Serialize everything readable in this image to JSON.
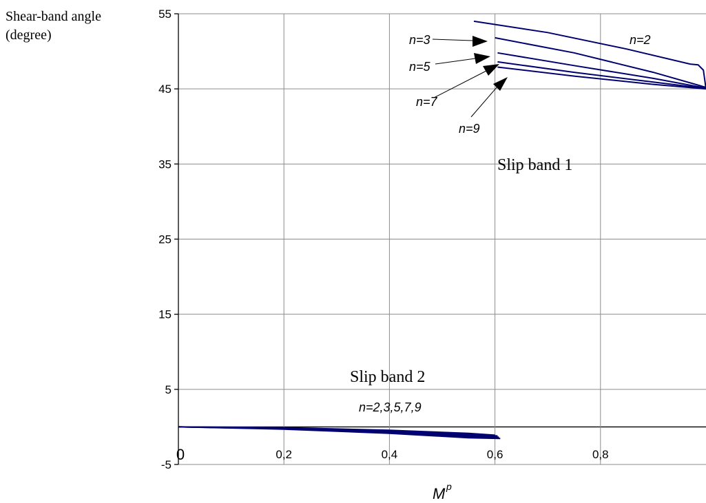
{
  "chart_data": {
    "type": "line",
    "ylabel_lines": [
      "Shear-band angle",
      "(degree)"
    ],
    "xlabel": "M",
    "xlabel_sup": "p",
    "xlim": [
      0,
      1
    ],
    "ylim": [
      -5,
      55
    ],
    "grid": true,
    "x_ticks": [
      {
        "value": 0,
        "label": "0"
      },
      {
        "value": 0.2,
        "label": "0,2"
      },
      {
        "value": 0.4,
        "label": "0,4"
      },
      {
        "value": 0.6,
        "label": "0,6"
      },
      {
        "value": 0.8,
        "label": "0,8"
      }
    ],
    "y_ticks": [
      {
        "value": 55,
        "label": "55"
      },
      {
        "value": 45,
        "label": "45"
      },
      {
        "value": 35,
        "label": "35"
      },
      {
        "value": 25,
        "label": "25"
      },
      {
        "value": 15,
        "label": "15"
      },
      {
        "value": 5,
        "label": "5"
      },
      {
        "value": -5,
        "label": "-5"
      }
    ],
    "y_gridlines": [
      55,
      45,
      35,
      25,
      15,
      5,
      0,
      -5
    ],
    "series": [
      {
        "group": "slip band 1",
        "label": "n=2",
        "x": [
          0.56,
          0.7,
          0.85,
          0.97,
          0.985,
          0.995,
          1.0
        ],
        "y": [
          54.0,
          52.5,
          50.3,
          48.3,
          48.2,
          47.5,
          45.0
        ]
      },
      {
        "group": "slip band 1",
        "label": "n=3",
        "x": [
          0.6,
          0.75,
          0.9,
          1.0
        ],
        "y": [
          51.8,
          49.8,
          47.2,
          45.2
        ]
      },
      {
        "group": "slip band 1",
        "label": "n=5",
        "x": [
          0.605,
          0.75,
          0.9,
          1.0
        ],
        "y": [
          49.8,
          48.1,
          46.4,
          45.1
        ]
      },
      {
        "group": "slip band 1",
        "label": "n=7",
        "x": [
          0.605,
          0.75,
          0.9,
          1.0
        ],
        "y": [
          48.6,
          47.2,
          45.9,
          45.05
        ]
      },
      {
        "group": "slip band 1",
        "label": "n=9",
        "x": [
          0.605,
          0.75,
          0.9,
          1.0
        ],
        "y": [
          47.9,
          46.7,
          45.6,
          45.0
        ]
      },
      {
        "group": "slip band 2",
        "label": "n=2",
        "x": [
          0,
          0.2,
          0.4,
          0.55,
          0.6
        ],
        "y": [
          0,
          -0.1,
          -0.45,
          -0.85,
          -1.1
        ]
      },
      {
        "group": "slip band 2",
        "label": "n=3",
        "x": [
          0,
          0.2,
          0.4,
          0.55,
          0.605
        ],
        "y": [
          0,
          -0.15,
          -0.55,
          -1.0,
          -1.2
        ]
      },
      {
        "group": "slip band 2",
        "label": "n=5",
        "x": [
          0,
          0.2,
          0.4,
          0.55,
          0.607
        ],
        "y": [
          0,
          -0.2,
          -0.65,
          -1.15,
          -1.35
        ]
      },
      {
        "group": "slip band 2",
        "label": "n=7",
        "x": [
          0,
          0.2,
          0.4,
          0.55,
          0.608
        ],
        "y": [
          0,
          -0.25,
          -0.75,
          -1.3,
          -1.45
        ]
      },
      {
        "group": "slip band 2",
        "label": "n=9",
        "x": [
          0,
          0.2,
          0.4,
          0.55,
          0.61
        ],
        "y": [
          0,
          -0.3,
          -0.85,
          -1.45,
          -1.55
        ]
      }
    ],
    "annotations": {
      "slip_band_1": "Slip band 1",
      "slip_band_2": "Slip band 2",
      "slip_band_2_n": "n=2,3,5,7,9",
      "n2": "n=2",
      "n3": "n=3",
      "n5": "n=5",
      "n7": "n=7",
      "n9": "n=9"
    }
  }
}
